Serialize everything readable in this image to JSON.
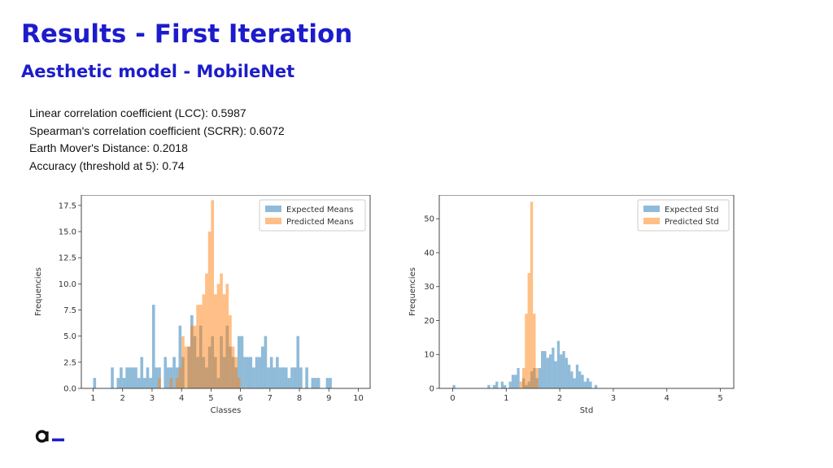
{
  "slide": {
    "title": "Results - First Iteration",
    "subtitle": "Aesthetic model - MobileNet",
    "metrics": [
      "Linear correlation coefficient (LCC): 0.5987",
      "Spearman's correlation coefficient (SCRR): 0.6072",
      "Earth Mover's Distance: 0.2018",
      "Accuracy (threshold at 5): 0.74"
    ]
  },
  "colors": {
    "title": "#1c1ccc",
    "expected": "#1f77b4",
    "predicted": "#ff7f0e"
  },
  "chart_data": [
    {
      "type": "bar",
      "title": "",
      "xlabel": "Classes",
      "ylabel": "Frequencies",
      "xlim": [
        0.6,
        10.4
      ],
      "ylim": [
        0,
        18.5
      ],
      "xticks": [
        "1",
        "2",
        "3",
        "4",
        "5",
        "6",
        "7",
        "8",
        "9",
        "10"
      ],
      "yticks": [
        "0.0",
        "2.5",
        "5.0",
        "7.5",
        "10.0",
        "12.5",
        "15.0",
        "17.5"
      ],
      "grid": false,
      "legend": "top-right",
      "series": [
        {
          "name": "Expected Means",
          "color": "#1f77b4",
          "bins": [
            [
              1.0,
              1.1,
              1
            ],
            [
              1.6,
              1.7,
              2
            ],
            [
              1.8,
              1.9,
              1
            ],
            [
              1.9,
              2.0,
              2
            ],
            [
              2.0,
              2.1,
              1
            ],
            [
              2.1,
              2.2,
              2
            ],
            [
              2.2,
              2.3,
              2
            ],
            [
              2.3,
              2.4,
              2
            ],
            [
              2.4,
              2.5,
              2
            ],
            [
              2.5,
              2.6,
              1
            ],
            [
              2.6,
              2.7,
              3
            ],
            [
              2.7,
              2.8,
              1
            ],
            [
              2.8,
              2.9,
              2
            ],
            [
              2.9,
              3.0,
              1
            ],
            [
              3.0,
              3.1,
              8
            ],
            [
              3.1,
              3.2,
              2
            ],
            [
              3.2,
              3.3,
              2
            ],
            [
              3.4,
              3.5,
              3
            ],
            [
              3.5,
              3.6,
              2
            ],
            [
              3.6,
              3.7,
              2
            ],
            [
              3.7,
              3.8,
              3
            ],
            [
              3.8,
              3.9,
              2
            ],
            [
              3.9,
              4.0,
              6
            ],
            [
              4.0,
              4.1,
              3
            ],
            [
              4.2,
              4.3,
              4
            ],
            [
              4.3,
              4.4,
              7
            ],
            [
              4.4,
              4.5,
              5
            ],
            [
              4.5,
              4.6,
              3
            ],
            [
              4.6,
              4.7,
              6
            ],
            [
              4.7,
              4.8,
              3
            ],
            [
              4.8,
              4.9,
              2
            ],
            [
              4.9,
              5.0,
              4
            ],
            [
              5.0,
              5.1,
              5
            ],
            [
              5.1,
              5.2,
              3
            ],
            [
              5.2,
              5.3,
              1
            ],
            [
              5.3,
              5.4,
              5
            ],
            [
              5.4,
              5.5,
              3
            ],
            [
              5.5,
              5.6,
              6
            ],
            [
              5.6,
              5.7,
              4
            ],
            [
              5.7,
              5.8,
              3
            ],
            [
              5.8,
              5.9,
              2
            ],
            [
              5.9,
              6.0,
              5
            ],
            [
              6.0,
              6.1,
              5
            ],
            [
              6.1,
              6.2,
              3
            ],
            [
              6.2,
              6.3,
              3
            ],
            [
              6.3,
              6.4,
              3
            ],
            [
              6.4,
              6.5,
              2
            ],
            [
              6.5,
              6.6,
              3
            ],
            [
              6.6,
              6.7,
              3
            ],
            [
              6.7,
              6.8,
              4
            ],
            [
              6.8,
              6.9,
              5
            ],
            [
              6.9,
              7.0,
              2
            ],
            [
              7.0,
              7.1,
              3
            ],
            [
              7.1,
              7.2,
              2
            ],
            [
              7.2,
              7.3,
              3
            ],
            [
              7.3,
              7.4,
              2
            ],
            [
              7.4,
              7.5,
              2
            ],
            [
              7.5,
              7.6,
              2
            ],
            [
              7.6,
              7.7,
              1
            ],
            [
              7.7,
              7.8,
              2
            ],
            [
              7.8,
              7.9,
              2
            ],
            [
              7.9,
              8.0,
              5
            ],
            [
              8.0,
              8.1,
              2
            ],
            [
              8.2,
              8.3,
              2
            ],
            [
              8.4,
              8.5,
              1
            ],
            [
              8.5,
              8.6,
              1
            ],
            [
              8.6,
              8.7,
              1
            ],
            [
              8.9,
              9.0,
              1
            ],
            [
              9.0,
              9.1,
              1
            ]
          ]
        },
        {
          "name": "Predicted Means",
          "color": "#ff7f0e",
          "bins": [
            [
              3.2,
              3.3,
              1
            ],
            [
              3.6,
              3.7,
              1
            ],
            [
              3.8,
              3.9,
              1
            ],
            [
              3.9,
              4.0,
              2
            ],
            [
              4.0,
              4.1,
              5
            ],
            [
              4.1,
              4.2,
              4
            ],
            [
              4.2,
              4.3,
              4
            ],
            [
              4.3,
              4.4,
              6
            ],
            [
              4.4,
              4.5,
              6
            ],
            [
              4.5,
              4.6,
              8
            ],
            [
              4.6,
              4.7,
              8
            ],
            [
              4.7,
              4.8,
              9
            ],
            [
              4.8,
              4.9,
              11
            ],
            [
              4.9,
              5.0,
              15
            ],
            [
              5.0,
              5.1,
              18
            ],
            [
              5.1,
              5.2,
              9
            ],
            [
              5.2,
              5.3,
              10
            ],
            [
              5.3,
              5.4,
              11
            ],
            [
              5.4,
              5.5,
              9
            ],
            [
              5.5,
              5.6,
              10
            ],
            [
              5.6,
              5.7,
              7
            ],
            [
              5.7,
              5.8,
              4
            ],
            [
              5.8,
              5.9,
              3
            ],
            [
              5.9,
              6.0,
              1
            ]
          ]
        }
      ]
    },
    {
      "type": "bar",
      "title": "",
      "xlabel": "Std",
      "ylabel": "Frequencies",
      "xlim": [
        -0.25,
        5.25
      ],
      "ylim": [
        0,
        57
      ],
      "xticks": [
        "0",
        "1",
        "2",
        "3",
        "4",
        "5"
      ],
      "yticks": [
        "0",
        "10",
        "20",
        "30",
        "40",
        "50"
      ],
      "grid": false,
      "legend": "top-right",
      "series": [
        {
          "name": "Expected Std",
          "color": "#1f77b4",
          "bins": [
            [
              0.0,
              0.05,
              1
            ],
            [
              0.65,
              0.7,
              1
            ],
            [
              0.75,
              0.8,
              1
            ],
            [
              0.8,
              0.85,
              2
            ],
            [
              0.9,
              0.95,
              2
            ],
            [
              0.95,
              1.0,
              1
            ],
            [
              1.05,
              1.1,
              2
            ],
            [
              1.1,
              1.15,
              4
            ],
            [
              1.15,
              1.2,
              4
            ],
            [
              1.2,
              1.25,
              6
            ],
            [
              1.3,
              1.35,
              3
            ],
            [
              1.35,
              1.4,
              1
            ],
            [
              1.4,
              1.45,
              2
            ],
            [
              1.45,
              1.5,
              5
            ],
            [
              1.5,
              1.55,
              6
            ],
            [
              1.55,
              1.6,
              3
            ],
            [
              1.6,
              1.65,
              6
            ],
            [
              1.65,
              1.7,
              11
            ],
            [
              1.7,
              1.75,
              11
            ],
            [
              1.75,
              1.8,
              9
            ],
            [
              1.8,
              1.85,
              10
            ],
            [
              1.85,
              1.9,
              12
            ],
            [
              1.9,
              1.95,
              8
            ],
            [
              1.95,
              2.0,
              14
            ],
            [
              2.0,
              2.05,
              10
            ],
            [
              2.05,
              2.1,
              11
            ],
            [
              2.1,
              2.15,
              9
            ],
            [
              2.15,
              2.2,
              7
            ],
            [
              2.2,
              2.25,
              5
            ],
            [
              2.25,
              2.3,
              3
            ],
            [
              2.3,
              2.35,
              7
            ],
            [
              2.35,
              2.4,
              5
            ],
            [
              2.4,
              2.45,
              4
            ],
            [
              2.45,
              2.5,
              2
            ],
            [
              2.5,
              2.55,
              3
            ],
            [
              2.55,
              2.6,
              2
            ],
            [
              2.65,
              2.7,
              1
            ]
          ]
        },
        {
          "name": "Predicted Std",
          "color": "#ff7f0e",
          "bins": [
            [
              1.25,
              1.3,
              2
            ],
            [
              1.3,
              1.35,
              6
            ],
            [
              1.35,
              1.4,
              22
            ],
            [
              1.4,
              1.45,
              34
            ],
            [
              1.45,
              1.5,
              55
            ],
            [
              1.5,
              1.55,
              22
            ],
            [
              1.55,
              1.6,
              6
            ]
          ]
        }
      ]
    }
  ]
}
